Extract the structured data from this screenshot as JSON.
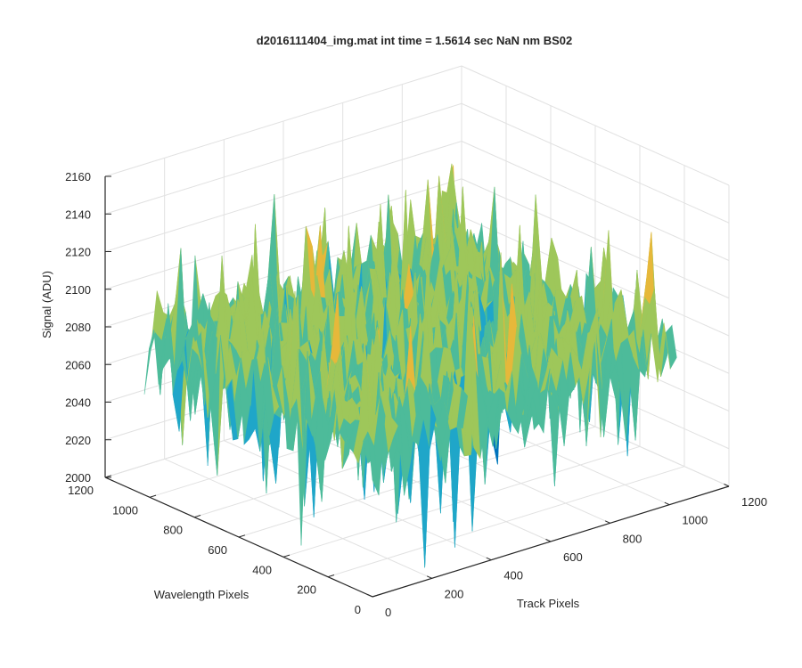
{
  "chart_data": {
    "type": "surface",
    "title": "d2016111404_img.mat int time = 1.5614 sec  NaN nm BS02",
    "xlabel": "Track Pixels",
    "ylabel": "Wavelength Pixels",
    "zlabel": "Signal (ADU)",
    "xlim": [
      0,
      1200
    ],
    "ylim": [
      0,
      1200
    ],
    "zlim": [
      2000,
      2160
    ],
    "x_ticks": [
      "0",
      "200",
      "400",
      "600",
      "800",
      "1000",
      "1200"
    ],
    "y_ticks": [
      "0",
      "200",
      "400",
      "600",
      "800",
      "1000",
      "1200"
    ],
    "z_ticks": [
      "2000",
      "2020",
      "2040",
      "2060",
      "2080",
      "2100",
      "2120",
      "2140",
      "2160"
    ],
    "grid": true,
    "surface": {
      "x_range": [
        0,
        1024
      ],
      "y_range": [
        0,
        1024
      ],
      "mean_signal": 2082,
      "signal_min": 2005,
      "signal_max": 2155,
      "colormap": [
        "#0072bd",
        "#1fa6c9",
        "#4dbb9a",
        "#9ec75a",
        "#e6b83a"
      ]
    }
  }
}
